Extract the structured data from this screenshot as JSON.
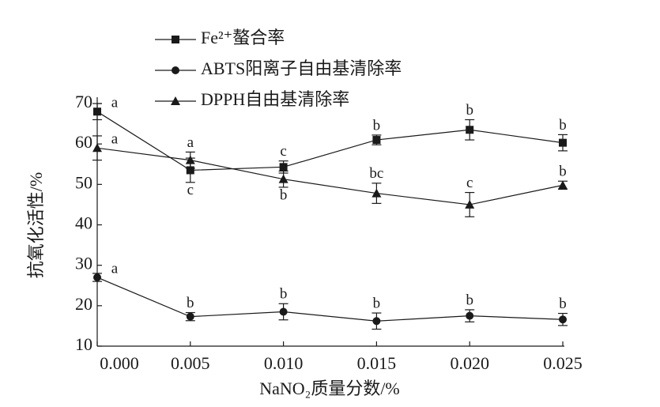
{
  "chart_data": {
    "type": "line",
    "x_label": "NaNO₂质量分数/%",
    "y_label": "抗氧化活性/%",
    "x": [
      0,
      0.005,
      0.01,
      0.015,
      0.02,
      0.025
    ],
    "xlim": [
      0,
      0.025
    ],
    "xticks": [
      {
        "value": 0,
        "label": "0.000"
      },
      {
        "value": 0.005,
        "label": "0.005"
      },
      {
        "value": 0.01,
        "label": "0.010"
      },
      {
        "value": 0.015,
        "label": "0.015"
      },
      {
        "value": 0.02,
        "label": "0.020"
      },
      {
        "value": 0.025,
        "label": "0.025"
      }
    ],
    "ylim": [
      10,
      70
    ],
    "yticks": [
      10,
      20,
      30,
      40,
      50,
      60,
      70
    ],
    "series": [
      {
        "name": "Fe²⁺螯合率",
        "color": "#1a1a1a",
        "marker": "square",
        "values": [
          68,
          53.5,
          54.3,
          61,
          63.5,
          60.3
        ],
        "errors": [
          2,
          3,
          1.5,
          1.2,
          2.5,
          2
        ],
        "letters": [
          "a",
          "c",
          "c",
          "b",
          "b",
          "b"
        ]
      },
      {
        "name": "ABTS阳离子自由基清除率",
        "color": "#1a1a1a",
        "marker": "circle",
        "values": [
          27,
          17.3,
          18.5,
          16.2,
          17.5,
          16.6
        ],
        "errors": [
          1,
          1,
          2,
          2,
          1.5,
          1.5
        ],
        "letters": [
          "a",
          "b",
          "b",
          "b",
          "b",
          "b"
        ]
      },
      {
        "name": "DPPH自由基清除率",
        "color": "#1a1a1a",
        "marker": "triangle",
        "values": [
          59,
          56,
          51.3,
          47.8,
          45,
          49.8
        ],
        "errors": [
          3,
          2,
          2,
          2.5,
          3,
          1
        ],
        "letters": [
          "a",
          "a",
          "b",
          "bc",
          "c",
          "b"
        ]
      }
    ]
  }
}
